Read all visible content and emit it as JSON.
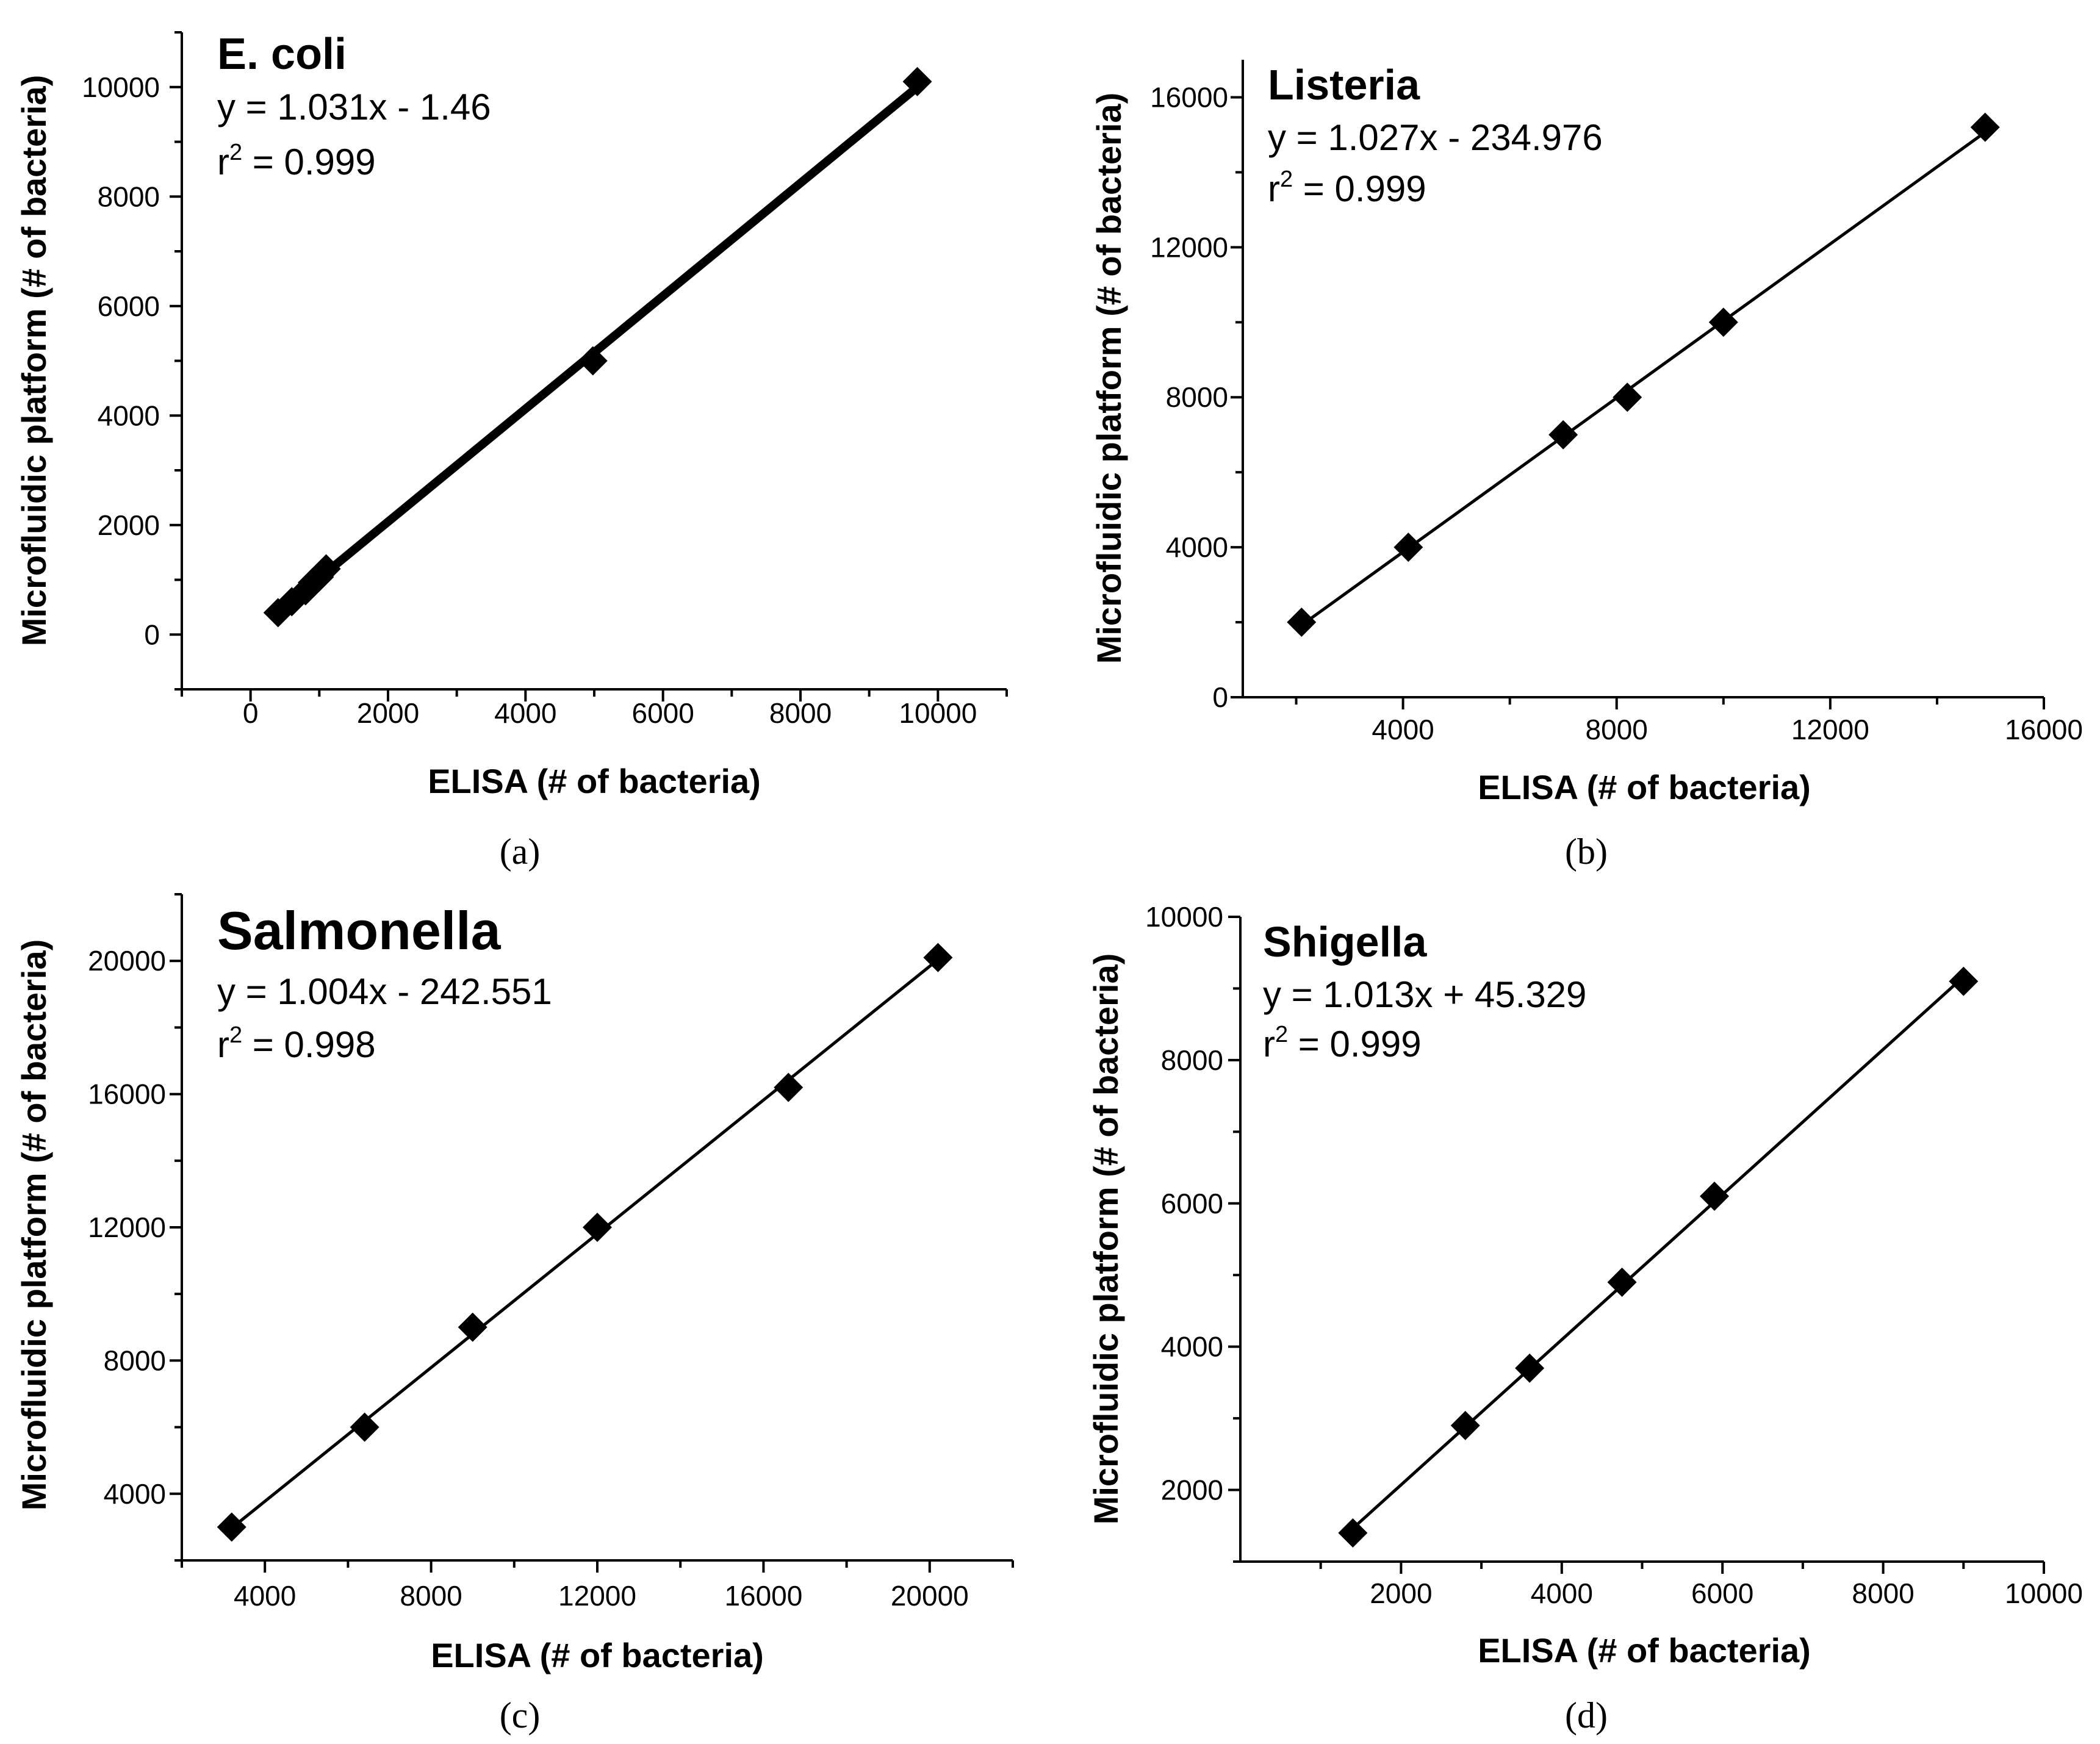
{
  "chart_data": [
    {
      "type": "scatter",
      "panel": "(a)",
      "title": "E. coli",
      "equation": "y = 1.031x - 1.46",
      "r2_prefix": "r",
      "r2_exp": "2",
      "r2_value": " = 0.999",
      "xlabel": "ELISA (# of bacteria)",
      "ylabel": "Microfluidic platform (# of bacteria)",
      "xlim": [
        -1000,
        11000
      ],
      "ylim": [
        -1000,
        11000
      ],
      "xticks": [
        0,
        2000,
        4000,
        6000,
        8000,
        10000
      ],
      "xtick_labels": [
        "0",
        "2000",
        "4000",
        "6000",
        "8000",
        "10000"
      ],
      "yticks": [
        0,
        2000,
        4000,
        6000,
        8000,
        10000
      ],
      "ytick_labels": [
        "0",
        "2000",
        "4000",
        "6000",
        "8000",
        "10000"
      ],
      "slope": 1.031,
      "intercept": -1.46,
      "fit_x": [
        400,
        9700
      ],
      "fit_stroke": 14,
      "marker_size": 24,
      "points": [
        {
          "x": 400,
          "y": 400
        },
        {
          "x": 600,
          "y": 600
        },
        {
          "x": 800,
          "y": 800
        },
        {
          "x": 900,
          "y": 950
        },
        {
          "x": 1000,
          "y": 1050
        },
        {
          "x": 1100,
          "y": 1200
        },
        {
          "x": 4980,
          "y": 5000
        },
        {
          "x": 9700,
          "y": 10100
        }
      ]
    },
    {
      "type": "scatter",
      "panel": "(b)",
      "title": "Listeria",
      "equation": "y = 1.027x - 234.976",
      "r2_prefix": "r",
      "r2_exp": "2",
      "r2_value": " = 0.999",
      "xlabel": "ELISA (# of bacteria)",
      "ylabel": "Microfluidic platform (# of bacteria)",
      "xlim": [
        1000,
        16000
      ],
      "ylim": [
        0,
        17000
      ],
      "xticks": [
        4000,
        8000,
        12000,
        16000
      ],
      "xtick_labels": [
        "4000",
        "8000",
        "12000",
        "16000"
      ],
      "yticks": [
        0,
        4000,
        8000,
        12000,
        16000
      ],
      "ytick_labels": [
        "0",
        "4000",
        "8000",
        "12000",
        "16000"
      ],
      "slope": 1.027,
      "intercept": -234.976,
      "fit_x": [
        2100,
        14900
      ],
      "fit_stroke": 5,
      "marker_size": 24,
      "points": [
        {
          "x": 2100,
          "y": 2000
        },
        {
          "x": 4100,
          "y": 4000
        },
        {
          "x": 7000,
          "y": 7000
        },
        {
          "x": 8200,
          "y": 8000
        },
        {
          "x": 10000,
          "y": 10000
        },
        {
          "x": 14900,
          "y": 15200
        }
      ]
    },
    {
      "type": "scatter",
      "panel": "(c)",
      "title": "Salmonella",
      "equation": "y = 1.004x - 242.551",
      "r2_prefix": "r",
      "r2_exp": "2",
      "r2_value": " = 0.998",
      "xlabel": "ELISA (# of bacteria)",
      "ylabel": "Microfluidic platform (# of bacteria)",
      "xlim": [
        2000,
        22000
      ],
      "ylim": [
        2000,
        22000
      ],
      "xticks": [
        4000,
        8000,
        12000,
        16000,
        20000
      ],
      "xtick_labels": [
        "4000",
        "8000",
        "12000",
        "16000",
        "20000"
      ],
      "yticks": [
        4000,
        8000,
        12000,
        16000,
        20000
      ],
      "ytick_labels": [
        "4000",
        "8000",
        "12000",
        "16000",
        "20000"
      ],
      "slope": 1.004,
      "intercept": -242.551,
      "fit_x": [
        3200,
        20200
      ],
      "fit_stroke": 5,
      "marker_size": 24,
      "points": [
        {
          "x": 3200,
          "y": 3000
        },
        {
          "x": 6400,
          "y": 6000
        },
        {
          "x": 9000,
          "y": 9000
        },
        {
          "x": 12000,
          "y": 12000
        },
        {
          "x": 16600,
          "y": 16200
        },
        {
          "x": 20200,
          "y": 20100
        }
      ]
    },
    {
      "type": "scatter",
      "panel": "(d)",
      "title": "Shigella",
      "equation": "y = 1.013x + 45.329",
      "r2_prefix": "r",
      "r2_exp": "2",
      "r2_value": " = 0.999",
      "xlabel": "ELISA (# of bacteria)",
      "ylabel": "Microfluidic platform (# of bacteria)",
      "xlim": [
        0,
        10000
      ],
      "ylim": [
        1000,
        10000
      ],
      "xticks": [
        2000,
        4000,
        6000,
        8000,
        10000
      ],
      "xtick_labels": [
        "2000",
        "4000",
        "6000",
        "8000",
        "10000"
      ],
      "yticks": [
        2000,
        4000,
        6000,
        8000,
        10000
      ],
      "ytick_labels": [
        "2000",
        "4000",
        "6000",
        "8000",
        "10000"
      ],
      "slope": 1.013,
      "intercept": 45.329,
      "fit_x": [
        1400,
        9000
      ],
      "fit_stroke": 5,
      "marker_size": 24,
      "points": [
        {
          "x": 1400,
          "y": 1400
        },
        {
          "x": 2800,
          "y": 2900
        },
        {
          "x": 3600,
          "y": 3700
        },
        {
          "x": 4750,
          "y": 4900
        },
        {
          "x": 5900,
          "y": 6100
        },
        {
          "x": 9000,
          "y": 9100
        }
      ]
    }
  ]
}
